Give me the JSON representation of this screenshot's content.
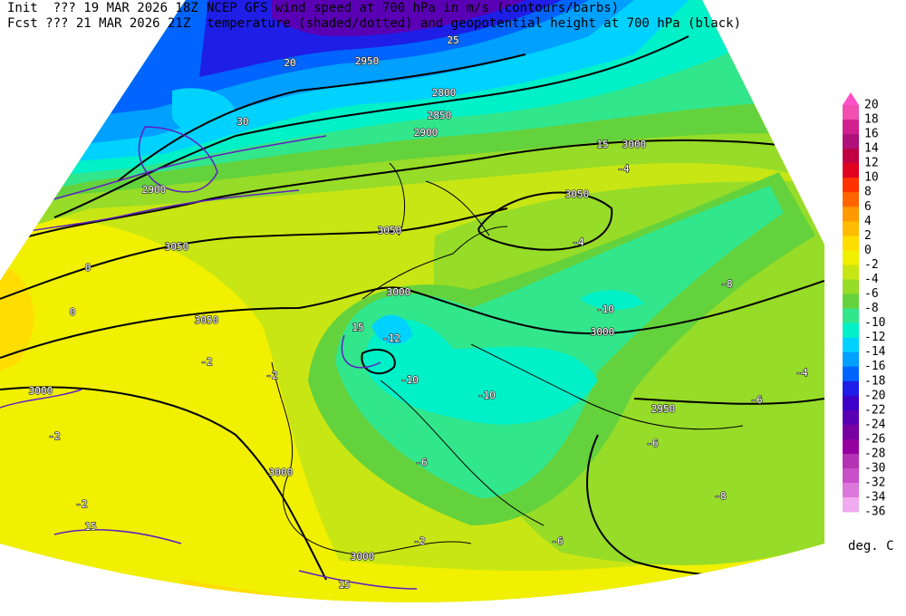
{
  "header": {
    "init": "Init  ??? 19 MAR 2026 18Z",
    "fcst": "Fcst ??? 21 MAR 2026 21Z",
    "line1": "NCEP GFS wind speed at 700 hPa in m/s (contours/barbs)",
    "line2": "temperature (shaded/dotted) and geopotential height at 700 hPa (black)"
  },
  "legend": {
    "levels": [
      20,
      18,
      16,
      14,
      12,
      10,
      8,
      6,
      4,
      2,
      0,
      -2,
      -4,
      -6,
      -8,
      -10,
      -12,
      -14,
      -16,
      -18,
      -20,
      -22,
      -24,
      -26,
      -28,
      -30,
      -32,
      -34,
      -36
    ],
    "colors": [
      "#ff50c8",
      "#f050b0",
      "#d02090",
      "#b0107a",
      "#c00040",
      "#e00020",
      "#ff3300",
      "#ff6600",
      "#ff9900",
      "#ffbb00",
      "#ffdd00",
      "#f0f000",
      "#c8e614",
      "#96dc28",
      "#64d23c",
      "#32e68c",
      "#00f0c8",
      "#00d2ff",
      "#00a0ff",
      "#0064ff",
      "#1e1ee6",
      "#3c00c8",
      "#5a00b4",
      "#7800a0",
      "#9600a0",
      "#b432b4",
      "#c850c8",
      "#dc78dc",
      "#f0aaf0"
    ],
    "unit": "deg. C"
  },
  "map": {
    "labels": [
      "3050",
      "3050",
      "3050",
      "3050",
      "3000",
      "3000",
      "3000",
      "3000",
      "3000",
      "3000",
      "2950",
      "2900",
      "2900",
      "2850",
      "2800",
      "2950",
      "15",
      "15",
      "15",
      "15",
      "20",
      "25",
      "30",
      "-12",
      "-10",
      "-10",
      "-10",
      "-8",
      "-6",
      "-6",
      "-6",
      "-4",
      "-2",
      "-2",
      "-2",
      "-2",
      "-2",
      "0",
      "0",
      "-4",
      "-4",
      "-8",
      "-6"
    ]
  }
}
